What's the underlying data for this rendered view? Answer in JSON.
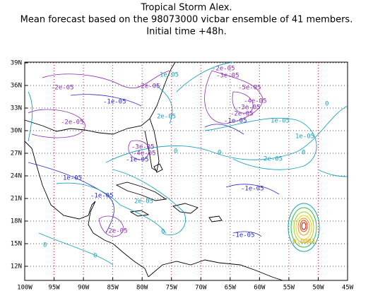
{
  "title": [
    "Tropical Storm Alex.",
    "Mean forecast based on the 98073000 vicbar ensemble of 41 members.",
    "Initial time +48h."
  ],
  "map": {
    "lon_labels": [
      "100W",
      "95W",
      "90W",
      "85W",
      "80W",
      "75W",
      "70W",
      "65W",
      "60W",
      "55W",
      "50W",
      "45W"
    ],
    "lat_labels": [
      "12N",
      "15N",
      "18N",
      "21N",
      "24N",
      "27N",
      "30N",
      "33N",
      "36N",
      "39N"
    ]
  },
  "contour_labels": [
    "-2e-05",
    "1e-05",
    "-3e-05",
    "-2e-05",
    "-2e-05",
    "-5e-05",
    "-1e-05",
    "2e-05",
    "-4e-05",
    "-3e-05",
    "-2e-05",
    "-1e-05",
    "0",
    "1e-05",
    "-2e-05",
    "1e-05",
    "-3e-05",
    "-4e-05",
    "-1e-05",
    "0",
    "0",
    "0",
    "2e-05",
    "1e-05",
    "-1e-05",
    "-1e-05",
    "2e-05",
    "-2e-05",
    "0",
    "-1e-05",
    "0.0001",
    "0",
    "0"
  ]
}
